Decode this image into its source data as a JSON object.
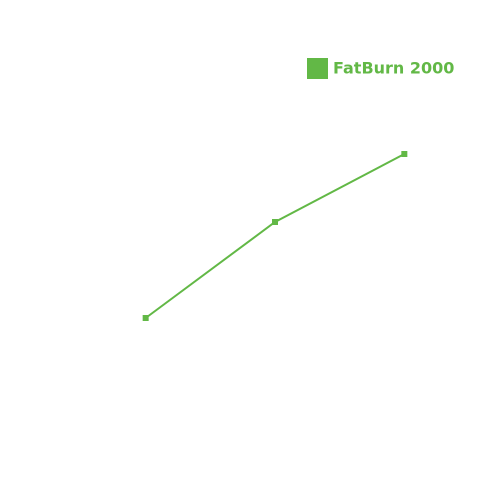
{
  "chart_data": {
    "type": "line",
    "categories": [
      null,
      null,
      null
    ],
    "series": [
      {
        "name": "FatBurn 2000",
        "color": "#62b846",
        "values": [
          33,
          57,
          74
        ]
      }
    ],
    "ylim": [
      0,
      100
    ]
  }
}
